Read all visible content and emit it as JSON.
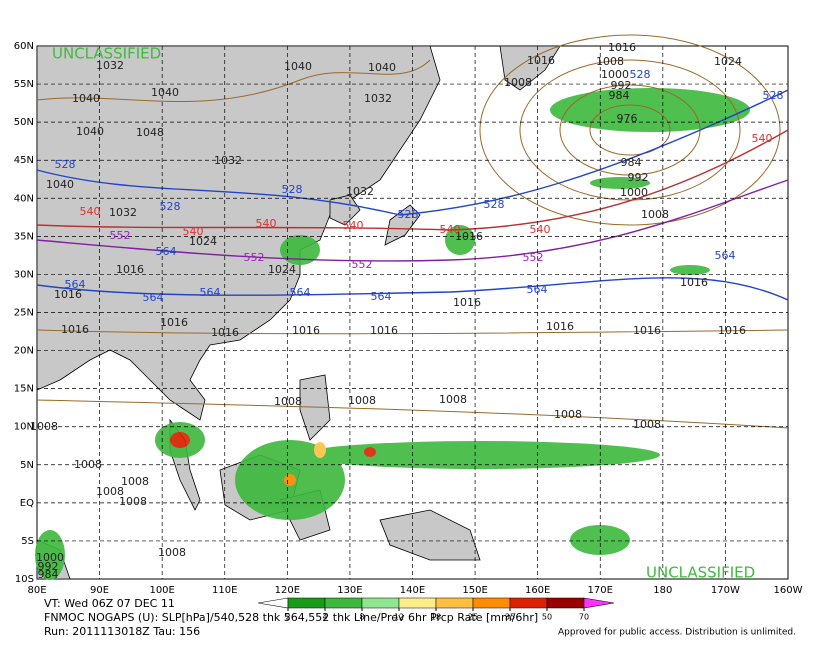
{
  "map": {
    "classification_top": "UNCLASSIFIED",
    "classification_bottom": "UNCLASSIFIED",
    "classification_color": "#3dbb3d",
    "lat_labels": [
      "60N",
      "55N",
      "50N",
      "45N",
      "40N",
      "35N",
      "30N",
      "25N",
      "20N",
      "15N",
      "10N",
      "5N",
      "EQ",
      "5S",
      "10S"
    ],
    "lon_labels": [
      "80E",
      "90E",
      "100E",
      "110E",
      "120E",
      "130E",
      "140E",
      "150E",
      "160E",
      "170E",
      "180",
      "170W",
      "160W"
    ],
    "contour_groups": [
      {
        "color": "#222222",
        "labels": [
          "1032",
          "1040",
          "1040",
          "1040",
          "1040",
          "1032",
          "1040",
          "1048",
          "1032",
          "1040",
          "1032",
          "1032",
          "1024",
          "1016",
          "1016",
          "1016",
          "1016",
          "1016",
          "1016",
          "1016",
          "1016",
          "1016",
          "1016",
          "1016",
          "1016",
          "1024",
          "1008",
          "1016",
          "1008",
          "1000",
          "992",
          "984",
          "976",
          "984",
          "992",
          "1000",
          "1008",
          "1024",
          "1016",
          "1008",
          "1008",
          "1008",
          "1008",
          "1008",
          "1008",
          "1008",
          "1008",
          "1008",
          "1008",
          "1000",
          "992",
          "984",
          "1008",
          "1016"
        ]
      },
      {
        "color": "#2244cc",
        "labels": [
          "528",
          "528",
          "528",
          "528",
          "528",
          "528",
          "528",
          "564",
          "564",
          "564",
          "564",
          "564",
          "564",
          "564",
          "564"
        ]
      },
      {
        "color": "#e03030",
        "labels": [
          "540",
          "540",
          "540",
          "540",
          "540",
          "540",
          "540"
        ]
      },
      {
        "color": "#a020c0",
        "labels": [
          "552",
          "552",
          "552",
          "552"
        ]
      }
    ],
    "colorbar": {
      "ticks": [
        2,
        4,
        8,
        12,
        18,
        25,
        35,
        50,
        70
      ],
      "colors": [
        "#1a9a1a",
        "#3cb83c",
        "#8ee68e",
        "#ffee88",
        "#ffc040",
        "#ff8c00",
        "#dd2200",
        "#990000",
        "#ff33ff"
      ]
    },
    "footer": {
      "valid_time": "VT: Wed 06Z 07 DEC 11",
      "model": "FNMOC NOGAPS (U): SLP[hPa]/540,528 thk 564,552 thk Line/Prev 6hr Prcp Rate [mm/6hr]",
      "run": "Run: 2011113018Z Tau: 156",
      "disclaimer": "Approved for public access. Distribution is unlimited."
    }
  }
}
